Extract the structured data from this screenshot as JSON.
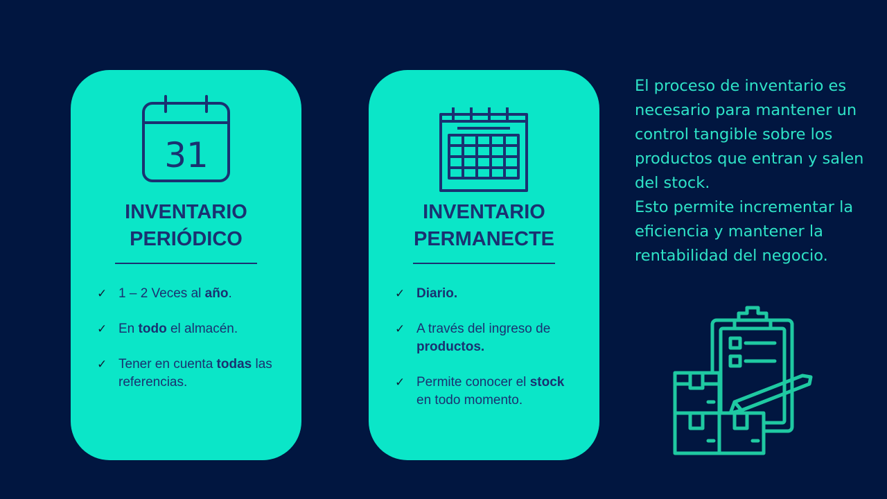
{
  "cards": [
    {
      "icon": "calendar-31-icon",
      "calendar_day": "31",
      "title_line1": "INVENTARIO",
      "title_line2": "PERIÓDICO",
      "bullets": [
        {
          "parts": [
            "1 – 2 Veces al ",
            "año",
            "."
          ]
        },
        {
          "parts": [
            "En ",
            "todo",
            " el almacén."
          ]
        },
        {
          "parts": [
            "Tener en cuenta ",
            "todas",
            " las referencias."
          ]
        }
      ]
    },
    {
      "icon": "calendar-grid-icon",
      "title_line1": "INVENTARIO",
      "title_line2": "PERMANECTE",
      "bullets": [
        {
          "parts": [
            "",
            "Diario.",
            ""
          ]
        },
        {
          "parts": [
            "A través del ingreso de ",
            "productos.",
            ""
          ]
        },
        {
          "parts": [
            "Permite conocer el ",
            "stock",
            " en todo momento."
          ]
        }
      ]
    }
  ],
  "side_text": {
    "paragraph1": "El proceso de inventario es necesario para mantener un control tangible sobre los productos que entran y salen del stock.",
    "paragraph2": "Esto permite incrementar la eficiencia y mantener la rentabilidad del negocio."
  },
  "illustration_icon": "clipboard-boxes-pen-icon",
  "check_symbol": "✓",
  "colors": {
    "background": "#011640",
    "card": "#0BE6C8",
    "card_text": "#1A3171",
    "side_text": "#2FE3C7",
    "illustration": "#1FC9A2"
  }
}
